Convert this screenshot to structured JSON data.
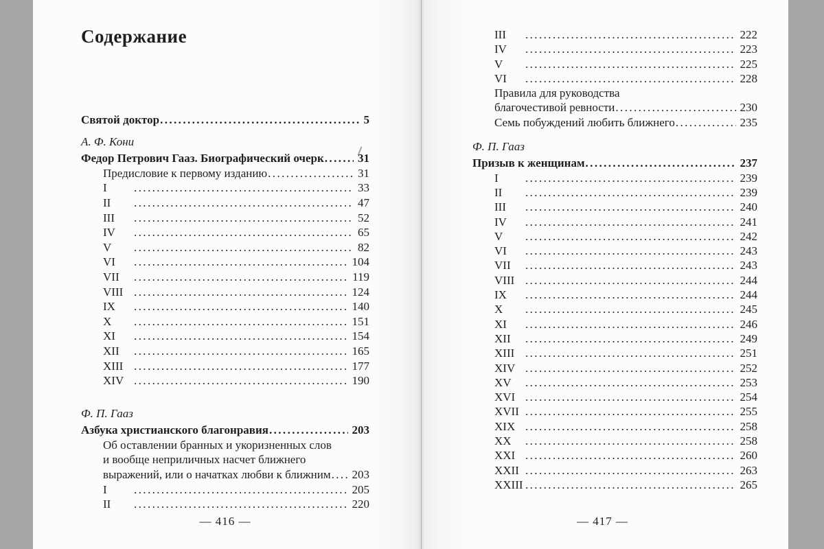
{
  "photo": {
    "surround_color": "#a6a6a6",
    "page_color": "#fcfcfb",
    "text_color": "#1e1e1e"
  },
  "book": {
    "left_page": {
      "heading": "Содержание",
      "footer": "— 416 —",
      "entries": [
        {
          "label": "Святой доктор",
          "page": "5",
          "style": "title",
          "dots": true
        },
        {
          "label": "А. Ф. Кони",
          "style": "author"
        },
        {
          "label": "Федор Петрович Гааз. Биографический очерк",
          "page": "31",
          "style": "title",
          "dots": true
        },
        {
          "label": "Предисловие к первому изданию",
          "page": "31",
          "indent": true,
          "dots": true
        },
        {
          "label": "I",
          "page": "33",
          "numeral": true,
          "dots": true
        },
        {
          "label": "II",
          "page": "47",
          "numeral": true,
          "dots": true
        },
        {
          "label": "III",
          "page": "52",
          "numeral": true,
          "dots": true
        },
        {
          "label": "IV",
          "page": "65",
          "numeral": true,
          "dots": true
        },
        {
          "label": "V",
          "page": "82",
          "numeral": true,
          "dots": true
        },
        {
          "label": "VI",
          "page": "104",
          "numeral": true,
          "dots": true
        },
        {
          "label": "VII",
          "page": "119",
          "numeral": true,
          "dots": true
        },
        {
          "label": "VIII",
          "page": "124",
          "numeral": true,
          "dots": true
        },
        {
          "label": "IX",
          "page": "140",
          "numeral": true,
          "dots": true
        },
        {
          "label": "X",
          "page": "151",
          "numeral": true,
          "dots": true
        },
        {
          "label": "XI",
          "page": "154",
          "numeral": true,
          "dots": true
        },
        {
          "label": "XII",
          "page": "165",
          "numeral": true,
          "dots": true
        },
        {
          "label": "XIII",
          "page": "177",
          "numeral": true,
          "dots": true
        },
        {
          "label": "XIV",
          "page": "190",
          "numeral": true,
          "dots": true
        },
        {
          "label": "Ф. П. Гааз",
          "style": "author",
          "section_break": true
        },
        {
          "label": "Азбука христианского благонравия",
          "page": "203",
          "style": "title",
          "dots": true
        },
        {
          "label": "Об оставлении бранных и укоризненных слов",
          "indent": true
        },
        {
          "label": "и вообще неприличных насчет ближнего",
          "indent": true
        },
        {
          "label": "выражений, или о начатках любви к ближним",
          "page": "203",
          "indent": true,
          "dots": true
        },
        {
          "label": "I",
          "page": "205",
          "numeral": true,
          "dots": true
        },
        {
          "label": "II",
          "page": "220",
          "numeral": true,
          "dots": true
        }
      ]
    },
    "right_page": {
      "footer": "— 417 —",
      "entries": [
        {
          "label": "III",
          "page": "222",
          "numeral": true,
          "dots": true
        },
        {
          "label": "IV",
          "page": "223",
          "numeral": true,
          "dots": true
        },
        {
          "label": "V",
          "page": "225",
          "numeral": true,
          "dots": true
        },
        {
          "label": "VI",
          "page": "228",
          "numeral": true,
          "dots": true
        },
        {
          "label": "Правила для руководства",
          "indent": true
        },
        {
          "label": "благочестивой ревности",
          "page": "230",
          "indent": true,
          "dots": true
        },
        {
          "label": "Семь побуждений любить ближнего",
          "page": "235",
          "indent": true,
          "dots": true
        },
        {
          "label": "Ф. П. Гааз",
          "style": "author",
          "section_break": true
        },
        {
          "label": "Призыв к женщинам",
          "page": "237",
          "style": "title",
          "dots": true
        },
        {
          "label": "I",
          "page": "239",
          "numeral": true,
          "dots": true
        },
        {
          "label": "II",
          "page": "239",
          "numeral": true,
          "dots": true
        },
        {
          "label": "III",
          "page": "240",
          "numeral": true,
          "dots": true
        },
        {
          "label": "IV",
          "page": "241",
          "numeral": true,
          "dots": true
        },
        {
          "label": "V",
          "page": "242",
          "numeral": true,
          "dots": true
        },
        {
          "label": "VI",
          "page": "243",
          "numeral": true,
          "dots": true
        },
        {
          "label": "VII",
          "page": "243",
          "numeral": true,
          "dots": true
        },
        {
          "label": "VIII",
          "page": "244",
          "numeral": true,
          "dots": true
        },
        {
          "label": "IX",
          "page": "244",
          "numeral": true,
          "dots": true
        },
        {
          "label": "X",
          "page": "245",
          "numeral": true,
          "dots": true
        },
        {
          "label": "XI",
          "page": "246",
          "numeral": true,
          "dots": true
        },
        {
          "label": "XII",
          "page": "249",
          "numeral": true,
          "dots": true
        },
        {
          "label": "XIII",
          "page": "251",
          "numeral": true,
          "dots": true
        },
        {
          "label": "XIV",
          "page": "252",
          "numeral": true,
          "dots": true
        },
        {
          "label": "XV",
          "page": "253",
          "numeral": true,
          "dots": true
        },
        {
          "label": "XVI",
          "page": "254",
          "numeral": true,
          "dots": true
        },
        {
          "label": "XVII",
          "page": "255",
          "numeral": true,
          "dots": true
        },
        {
          "label": "XIX",
          "page": "258",
          "numeral": true,
          "dots": true
        },
        {
          "label": "XX",
          "page": "258",
          "numeral": true,
          "dots": true
        },
        {
          "label": "XXI",
          "page": "260",
          "numeral": true,
          "dots": true
        },
        {
          "label": "XXII",
          "page": "263",
          "numeral": true,
          "dots": true
        },
        {
          "label": "XXIII",
          "page": "265",
          "numeral": true,
          "dots": true
        }
      ]
    }
  }
}
